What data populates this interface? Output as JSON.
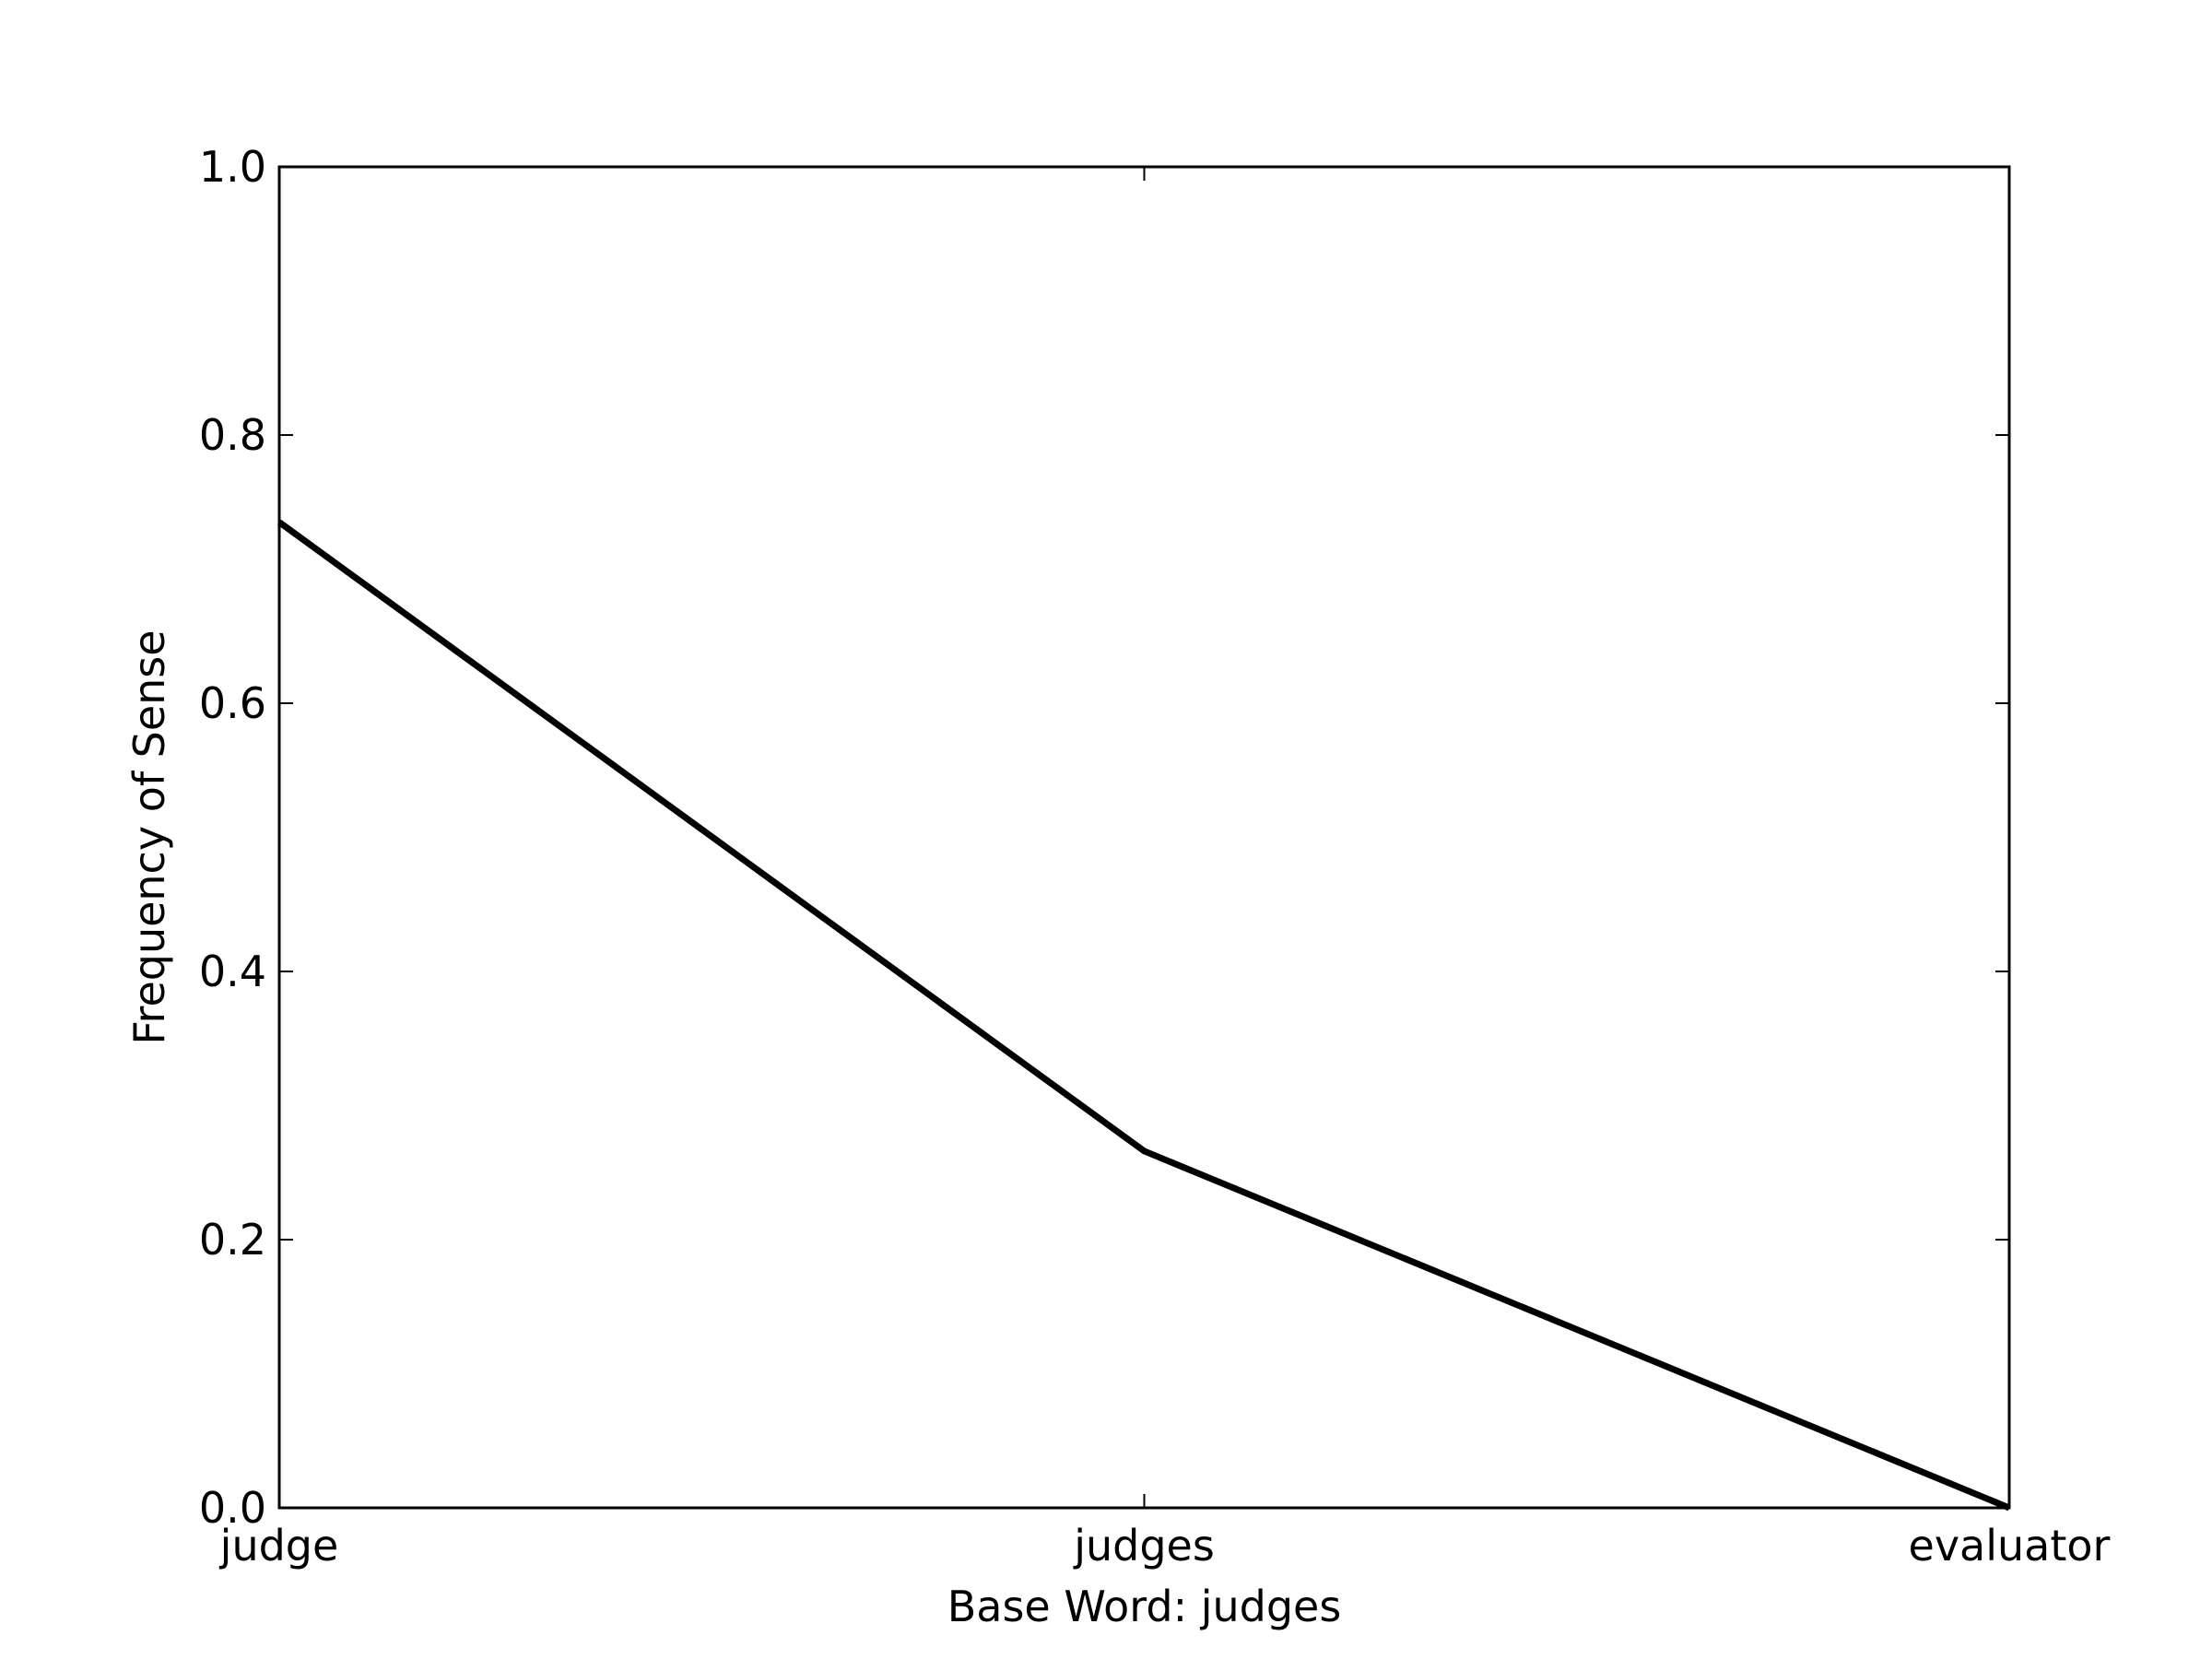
{
  "chart_data": {
    "type": "line",
    "title": "",
    "xlabel": "Base Word: judges",
    "ylabel": "Frequency of Sense",
    "categories": [
      "judge",
      "judges",
      "evaluator"
    ],
    "series": [
      {
        "values": [
          0.735,
          0.266,
          0.0
        ],
        "color": "#000000"
      }
    ],
    "ylim": [
      0.0,
      1.0
    ],
    "yticks": [
      "0.0",
      "0.2",
      "0.4",
      "0.6",
      "0.8",
      "1.0"
    ],
    "grid": false,
    "legend": "none"
  }
}
